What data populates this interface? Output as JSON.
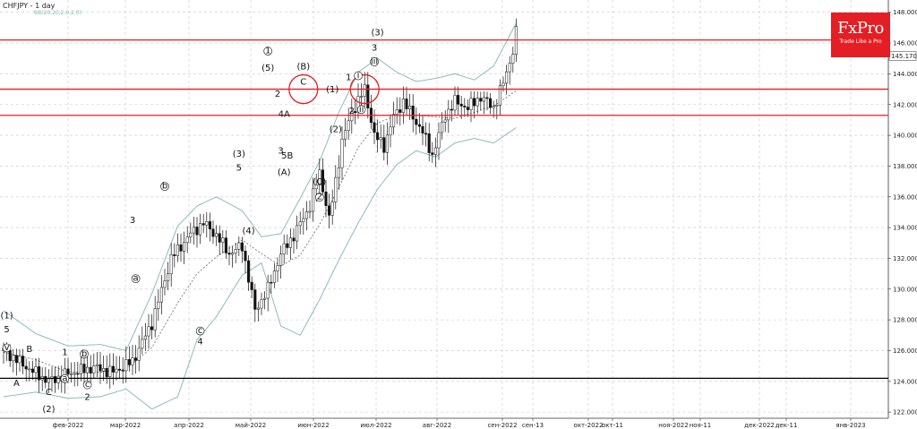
{
  "header": {
    "symbol_title": "CHFJPY - 1 day",
    "indicator_title": "BB(20,20,2.0,2.0)"
  },
  "logo": {
    "name": "FxPro",
    "tagline": "Trade Like a Pro"
  },
  "colors": {
    "resistance": "#e31e24",
    "support": "#000000",
    "bb_band": "#7fb7b0",
    "bb_mid": "#555555",
    "candle": "#111111",
    "signal": "#2e9a3c"
  },
  "icons": [
    "circle-marker-icon"
  ],
  "chart_data": {
    "type": "candlestick",
    "symbol": "CHFJPY",
    "timeframe": "1 day",
    "ylim": [
      121.6,
      148.8
    ],
    "y_ticks": [
      "148.000",
      "146.000",
      "144.000",
      "142.000",
      "140.000",
      "138.000",
      "136.000",
      "134.000",
      "132.000",
      "130.000",
      "128.000",
      "126.000",
      "124.000",
      "122.000"
    ],
    "x_ticks": [
      "фев-2022",
      "мар-2022",
      "апр-2022",
      "май-2022",
      "июн-2022",
      "июл-2022",
      "авг-2022",
      "сен-2022",
      "сен-13",
      "окт-2022",
      "окт-11",
      "ноя-2022",
      "ноя-11",
      "дек-2022",
      "дек-11",
      "янв-2023"
    ],
    "current_price_label": "145.170",
    "horizontal_lines": [
      {
        "price": 146.2,
        "color": "#e31e24"
      },
      {
        "price": 143.0,
        "color": "#e31e24"
      },
      {
        "price": 141.3,
        "color": "#e31e24"
      },
      {
        "price": 124.2,
        "color": "#000000"
      }
    ],
    "close_path": [
      {
        "t": 0,
        "p": 126.0
      },
      {
        "t": 8,
        "p": 124.8
      },
      {
        "t": 14,
        "p": 124.0
      },
      {
        "t": 20,
        "p": 124.5
      },
      {
        "t": 28,
        "p": 124.9
      },
      {
        "t": 34,
        "p": 124.6
      },
      {
        "t": 40,
        "p": 125.3
      },
      {
        "t": 46,
        "p": 127.8
      },
      {
        "t": 52,
        "p": 132.0
      },
      {
        "t": 58,
        "p": 133.6
      },
      {
        "t": 62,
        "p": 134.3
      },
      {
        "t": 66,
        "p": 133.5
      },
      {
        "t": 70,
        "p": 132.3
      },
      {
        "t": 74,
        "p": 132.8
      },
      {
        "t": 78,
        "p": 128.6
      },
      {
        "t": 82,
        "p": 130.0
      },
      {
        "t": 86,
        "p": 132.3
      },
      {
        "t": 90,
        "p": 133.5
      },
      {
        "t": 95,
        "p": 135.4
      },
      {
        "t": 98,
        "p": 137.6
      },
      {
        "t": 101,
        "p": 134.5
      },
      {
        "t": 105,
        "p": 139.6
      },
      {
        "t": 108,
        "p": 141.5
      },
      {
        "t": 112,
        "p": 143.0
      },
      {
        "t": 115,
        "p": 140.0
      },
      {
        "t": 118,
        "p": 139.3
      },
      {
        "t": 121,
        "p": 141.2
      },
      {
        "t": 124,
        "p": 142.2
      },
      {
        "t": 127,
        "p": 141.2
      },
      {
        "t": 130,
        "p": 140.2
      },
      {
        "t": 133,
        "p": 138.7
      },
      {
        "t": 137,
        "p": 141.3
      },
      {
        "t": 140,
        "p": 142.2
      },
      {
        "t": 144,
        "p": 141.8
      },
      {
        "t": 148,
        "p": 142.5
      },
      {
        "t": 152,
        "p": 141.8
      },
      {
        "t": 155,
        "p": 143.4
      },
      {
        "t": 158,
        "p": 145.5
      },
      {
        "t": 159,
        "p": 146.7
      }
    ],
    "bb_upper": [
      {
        "t": 0,
        "p": 128.6
      },
      {
        "t": 10,
        "p": 127.1
      },
      {
        "t": 20,
        "p": 126.3
      },
      {
        "t": 30,
        "p": 126.4
      },
      {
        "t": 38,
        "p": 126.0
      },
      {
        "t": 46,
        "p": 129.7
      },
      {
        "t": 54,
        "p": 134.1
      },
      {
        "t": 60,
        "p": 135.4
      },
      {
        "t": 66,
        "p": 136.0
      },
      {
        "t": 74,
        "p": 135.1
      },
      {
        "t": 80,
        "p": 133.4
      },
      {
        "t": 86,
        "p": 133.6
      },
      {
        "t": 92,
        "p": 135.9
      },
      {
        "t": 98,
        "p": 138.3
      },
      {
        "t": 104,
        "p": 141.5
      },
      {
        "t": 110,
        "p": 144.1
      },
      {
        "t": 116,
        "p": 145.0
      },
      {
        "t": 122,
        "p": 144.1
      },
      {
        "t": 128,
        "p": 143.5
      },
      {
        "t": 134,
        "p": 143.7
      },
      {
        "t": 140,
        "p": 144.0
      },
      {
        "t": 146,
        "p": 143.6
      },
      {
        "t": 152,
        "p": 144.5
      },
      {
        "t": 159,
        "p": 147.3
      }
    ],
    "bb_mid": [
      {
        "t": 0,
        "p": 125.9
      },
      {
        "t": 10,
        "p": 125.4
      },
      {
        "t": 20,
        "p": 124.6
      },
      {
        "t": 30,
        "p": 124.6
      },
      {
        "t": 38,
        "p": 124.8
      },
      {
        "t": 46,
        "p": 126.2
      },
      {
        "t": 54,
        "p": 129.1
      },
      {
        "t": 60,
        "p": 131.0
      },
      {
        "t": 66,
        "p": 132.1
      },
      {
        "t": 74,
        "p": 133.2
      },
      {
        "t": 80,
        "p": 132.3
      },
      {
        "t": 86,
        "p": 131.5
      },
      {
        "t": 92,
        "p": 132.2
      },
      {
        "t": 98,
        "p": 134.2
      },
      {
        "t": 104,
        "p": 136.6
      },
      {
        "t": 110,
        "p": 139.2
      },
      {
        "t": 116,
        "p": 140.8
      },
      {
        "t": 122,
        "p": 141.3
      },
      {
        "t": 128,
        "p": 141.3
      },
      {
        "t": 134,
        "p": 141.2
      },
      {
        "t": 140,
        "p": 141.1
      },
      {
        "t": 146,
        "p": 141.5
      },
      {
        "t": 152,
        "p": 141.9
      },
      {
        "t": 159,
        "p": 142.9
      }
    ],
    "bb_lower": [
      {
        "t": 0,
        "p": 123.0
      },
      {
        "t": 10,
        "p": 123.3
      },
      {
        "t": 20,
        "p": 122.9
      },
      {
        "t": 30,
        "p": 123.0
      },
      {
        "t": 38,
        "p": 123.5
      },
      {
        "t": 46,
        "p": 122.2
      },
      {
        "t": 54,
        "p": 123.0
      },
      {
        "t": 60,
        "p": 126.7
      },
      {
        "t": 66,
        "p": 128.2
      },
      {
        "t": 74,
        "p": 130.9
      },
      {
        "t": 80,
        "p": 131.7
      },
      {
        "t": 86,
        "p": 127.6
      },
      {
        "t": 92,
        "p": 127.0
      },
      {
        "t": 98,
        "p": 129.3
      },
      {
        "t": 104,
        "p": 131.9
      },
      {
        "t": 110,
        "p": 134.3
      },
      {
        "t": 116,
        "p": 136.5
      },
      {
        "t": 122,
        "p": 138.1
      },
      {
        "t": 128,
        "p": 139.0
      },
      {
        "t": 134,
        "p": 138.6
      },
      {
        "t": 140,
        "p": 139.5
      },
      {
        "t": 146,
        "p": 139.8
      },
      {
        "t": 152,
        "p": 139.5
      },
      {
        "t": 159,
        "p": 140.5
      }
    ],
    "wave_labels": [
      {
        "text": "(1)",
        "t": 1,
        "p": 128.1
      },
      {
        "text": "5",
        "t": 1,
        "p": 127.2
      },
      {
        "text": "v",
        "t": 1,
        "p": 126.0,
        "circled": true
      },
      {
        "text": "A",
        "t": 4,
        "p": 123.7
      },
      {
        "text": "B",
        "t": 8,
        "p": 125.9
      },
      {
        "text": "C",
        "t": 14,
        "p": 123.1
      },
      {
        "text": "(2)",
        "t": 14,
        "p": 122.0
      },
      {
        "text": "a",
        "t": 19,
        "p": 124.0,
        "circled": true
      },
      {
        "text": "1",
        "t": 19,
        "p": 125.7
      },
      {
        "text": "b",
        "t": 25,
        "p": 125.6,
        "circled": true
      },
      {
        "text": "c",
        "t": 26,
        "p": 123.6,
        "circled": true
      },
      {
        "text": "2",
        "t": 26,
        "p": 122.8
      },
      {
        "text": "3",
        "t": 40,
        "p": 134.3
      },
      {
        "text": "a",
        "t": 41,
        "p": 130.5,
        "circled": true
      },
      {
        "text": "b",
        "t": 50,
        "p": 136.5,
        "circled": true
      },
      {
        "text": "c",
        "t": 61,
        "p": 127.1,
        "circled": true
      },
      {
        "text": "4",
        "t": 61,
        "p": 126.4
      },
      {
        "text": "(3)",
        "t": 73,
        "p": 138.6
      },
      {
        "text": "5",
        "t": 73,
        "p": 137.7
      },
      {
        "text": "(4)",
        "t": 76,
        "p": 133.6
      },
      {
        "text": "1",
        "t": 82,
        "p": 145.3,
        "circled": true
      },
      {
        "text": "(5)",
        "t": 82,
        "p": 144.2
      },
      {
        "text": "2",
        "t": 85,
        "p": 142.5
      },
      {
        "text": "4A",
        "t": 87,
        "p": 141.2
      },
      {
        "text": "3",
        "t": 86,
        "p": 138.8
      },
      {
        "text": "5B",
        "t": 88,
        "p": 138.5
      },
      {
        "text": "(A)",
        "t": 87,
        "p": 137.4
      },
      {
        "text": "(B)",
        "t": 93,
        "p": 144.3
      },
      {
        "text": "C",
        "t": 93,
        "p": 143.3
      },
      {
        "text": "(1)",
        "t": 102,
        "p": 142.8
      },
      {
        "text": "(2)",
        "t": 103,
        "p": 140.2
      },
      {
        "text": "(C)",
        "t": 98,
        "p": 136.8
      },
      {
        "text": "2",
        "t": 98,
        "p": 135.8,
        "circled": true
      },
      {
        "text": "1",
        "t": 107,
        "p": 143.6
      },
      {
        "text": "2",
        "t": 108,
        "p": 141.4
      },
      {
        "text": "i",
        "t": 110,
        "p": 143.7,
        "circled": true
      },
      {
        "text": "ii",
        "t": 111,
        "p": 141.5,
        "circled": true
      },
      {
        "text": "(3)",
        "t": 116,
        "p": 146.5
      },
      {
        "text": "3",
        "t": 115,
        "p": 145.5
      },
      {
        "text": "iii",
        "t": 115,
        "p": 144.6,
        "circled": true
      }
    ],
    "highlight_circles": [
      {
        "t": 93,
        "p": 143.0
      },
      {
        "t": 112,
        "p": 143.0
      }
    ]
  }
}
